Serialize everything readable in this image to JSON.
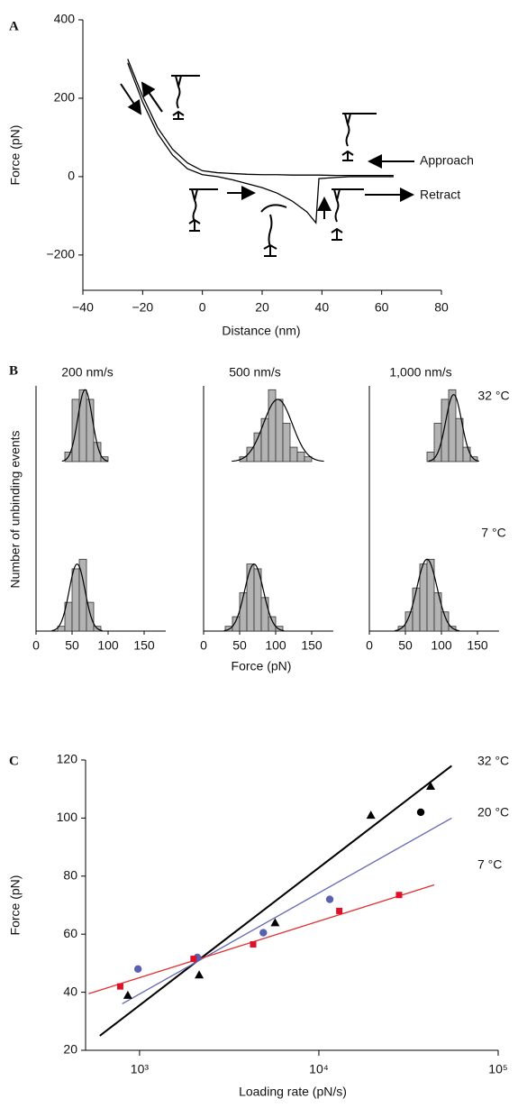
{
  "chart_data": [
    {
      "type": "line",
      "panel": "A",
      "xlabel": "Distance (nm)",
      "ylabel": "Force (pN)",
      "x": [
        -25,
        -20,
        -15,
        -10,
        -5,
        0,
        5,
        10,
        15,
        20,
        25,
        30,
        35,
        38,
        39,
        45,
        50,
        55,
        60,
        64
      ],
      "series": [
        {
          "name": "Approach",
          "color": "#000000",
          "values": [
            300,
            205,
            125,
            70,
            35,
            15,
            10,
            8,
            6,
            5,
            5,
            4,
            4,
            4,
            4,
            3,
            3,
            3,
            3,
            3
          ]
        },
        {
          "name": "Retract",
          "color": "#000000",
          "values": [
            290,
            190,
            110,
            55,
            20,
            5,
            0,
            -8,
            -18,
            -28,
            -42,
            -62,
            -90,
            -118,
            -5,
            -2,
            0,
            0,
            0,
            0
          ]
        }
      ],
      "xlim": [
        -40,
        80
      ],
      "ylim": [
        -290,
        400
      ],
      "xticks": [
        {
          "value": -40,
          "label": "−40"
        },
        {
          "value": -20,
          "label": "−20"
        },
        0,
        20,
        40,
        60,
        80
      ],
      "yticks": [
        {
          "value": -200,
          "label": "−200"
        },
        0,
        200,
        400
      ]
    },
    {
      "type": "histogram",
      "panel": "B",
      "ylabel": "Number of unbinding events",
      "xlabel": "Force (pN)",
      "columns": [
        "200 nm/s",
        "500 nm/s",
        "1,000 nm/s"
      ],
      "rows": [
        "32 °C",
        "7 °C"
      ],
      "color": "#b3b3b3",
      "xlim": [
        0,
        180
      ],
      "xticks": [
        0,
        50,
        100,
        150
      ],
      "ylim": [
        0,
        16
      ],
      "panels": [
        [
          {
            "bins": [
              40,
              50,
              60,
              70,
              80,
              90,
              100
            ],
            "counts": [
              2,
              13,
              15,
              13,
              4,
              1
            ],
            "fit": {
              "mean": 68,
              "sd": 10,
              "peak": 15
            }
          },
          {
            "bins": [
              50,
              60,
              70,
              80,
              90,
              100,
              110,
              120,
              130,
              140,
              150
            ],
            "counts": [
              1,
              3,
              6,
              9,
              15,
              13,
              8,
              3,
              2,
              1
            ],
            "fit": {
              "mean": 103,
              "sd": 20,
              "peak": 13
            }
          },
          {
            "bins": [
              80,
              90,
              100,
              110,
              120,
              130,
              140,
              150
            ],
            "counts": [
              2,
              8,
              13,
              15,
              9,
              3,
              1
            ],
            "fit": {
              "mean": 117,
              "sd": 11,
              "peak": 14
            }
          }
        ],
        [
          {
            "bins": [
              30,
              40,
              50,
              60,
              70,
              80,
              90
            ],
            "counts": [
              1,
              6,
              13,
              15,
              6,
              1
            ],
            "fit": {
              "mean": 57,
              "sd": 11,
              "peak": 14
            }
          },
          {
            "bins": [
              30,
              40,
              50,
              60,
              70,
              80,
              90,
              100,
              110
            ],
            "counts": [
              1,
              3,
              8,
              14,
              13,
              7,
              3,
              1
            ],
            "fit": {
              "mean": 70,
              "sd": 13,
              "peak": 14
            }
          },
          {
            "bins": [
              40,
              50,
              60,
              70,
              80,
              90,
              100,
              110,
              120
            ],
            "counts": [
              1,
              4,
              9,
              14,
              15,
              8,
              4,
              1
            ],
            "fit": {
              "mean": 80,
              "sd": 14,
              "peak": 15
            }
          }
        ]
      ]
    },
    {
      "type": "scatter",
      "panel": "C",
      "xlabel": "Loading rate (pN/s)",
      "ylabel": "Force (pN)",
      "xscale": "log",
      "xlim": [
        500,
        100000
      ],
      "ylim": [
        20,
        120
      ],
      "xticks": [
        {
          "value": 1000,
          "label": "10³"
        },
        {
          "value": 10000,
          "label": "10⁴"
        },
        {
          "value": 100000,
          "label": "10⁵"
        }
      ],
      "yticks": [
        20,
        40,
        60,
        80,
        100,
        120
      ],
      "series": [
        {
          "name": "32 °C",
          "color": "#000000",
          "markers": [
            "triangle",
            "triangle",
            "triangle",
            "triangle",
            "circle",
            "triangle"
          ],
          "x": [
            860,
            2150,
            5700,
            19500,
            37000,
            42000
          ],
          "values": [
            39,
            46,
            64,
            101,
            102,
            111
          ],
          "fit": {
            "x": [
              600,
              55000
            ],
            "y": [
              25,
              118
            ]
          }
        },
        {
          "name": "20 °C",
          "color": "#5a5fb0",
          "line_color": "#6468b0",
          "markers": [
            "circle",
            "circle",
            "circle",
            "circle"
          ],
          "x": [
            980,
            2100,
            4900,
            11500
          ],
          "values": [
            48,
            52,
            60.5,
            72
          ],
          "fit": {
            "x": [
              800,
              55000
            ],
            "y": [
              36,
              100
            ]
          }
        },
        {
          "name": "7 °C",
          "color": "#e0102a",
          "line_color": "#e03030",
          "markers": [
            "square",
            "square",
            "square",
            "square",
            "square"
          ],
          "x": [
            780,
            2000,
            4300,
            13000,
            28000
          ],
          "values": [
            42,
            51.5,
            56.5,
            68,
            73.5
          ],
          "fit": {
            "x": [
              520,
              44000
            ],
            "y": [
              39.5,
              77
            ]
          }
        }
      ]
    }
  ]
}
